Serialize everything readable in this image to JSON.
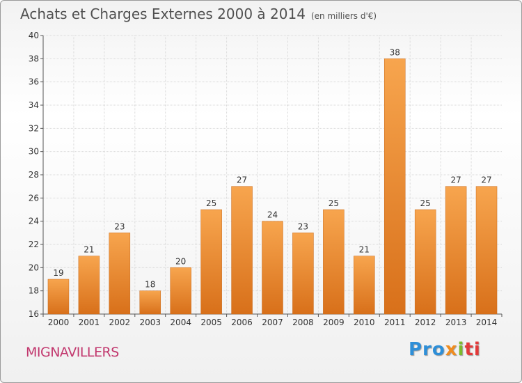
{
  "title": "Achats et Charges Externes 2000 à 2014",
  "subtitle": "(en milliers d'€)",
  "town": "MIGNAVILLERS",
  "logo": {
    "p1": "Pro",
    "p2": "x",
    "p3": "i",
    "p4": "ti"
  },
  "colors": {
    "bar_light": "#f7a54e",
    "bar_dark": "#d8701a",
    "grid": "#d9d9d9",
    "axis": "#555555"
  },
  "chart_data": {
    "type": "bar",
    "categories": [
      "2000",
      "2001",
      "2002",
      "2003",
      "2004",
      "2005",
      "2006",
      "2007",
      "2008",
      "2009",
      "2010",
      "2011",
      "2012",
      "2013",
      "2014"
    ],
    "values": [
      19,
      21,
      23,
      18,
      20,
      25,
      27,
      24,
      23,
      25,
      21,
      38,
      25,
      27,
      27
    ],
    "ylim": [
      16,
      40
    ],
    "yticks": [
      16,
      18,
      20,
      22,
      24,
      26,
      28,
      30,
      32,
      34,
      36,
      38,
      40
    ],
    "grid": true,
    "legend": "none"
  }
}
